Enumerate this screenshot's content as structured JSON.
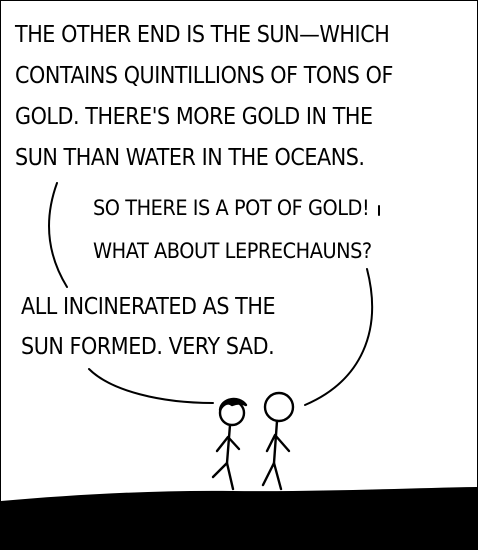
{
  "panel": {
    "speech_top": [
      "THE OTHER END IS THE SUN—WHICH",
      "CONTAINS QUINTILLIONS OF TONS OF",
      "GOLD. THERE'S MORE GOLD IN THE",
      "SUN THAN WATER IN THE OCEANS."
    ],
    "speech_right": [
      "SO THERE IS A POT OF GOLD!",
      "WHAT ABOUT LEPRECHAUNS?"
    ],
    "speech_left": [
      "ALL INCINERATED AS THE",
      "SUN FORMED. VERY SAD."
    ]
  }
}
